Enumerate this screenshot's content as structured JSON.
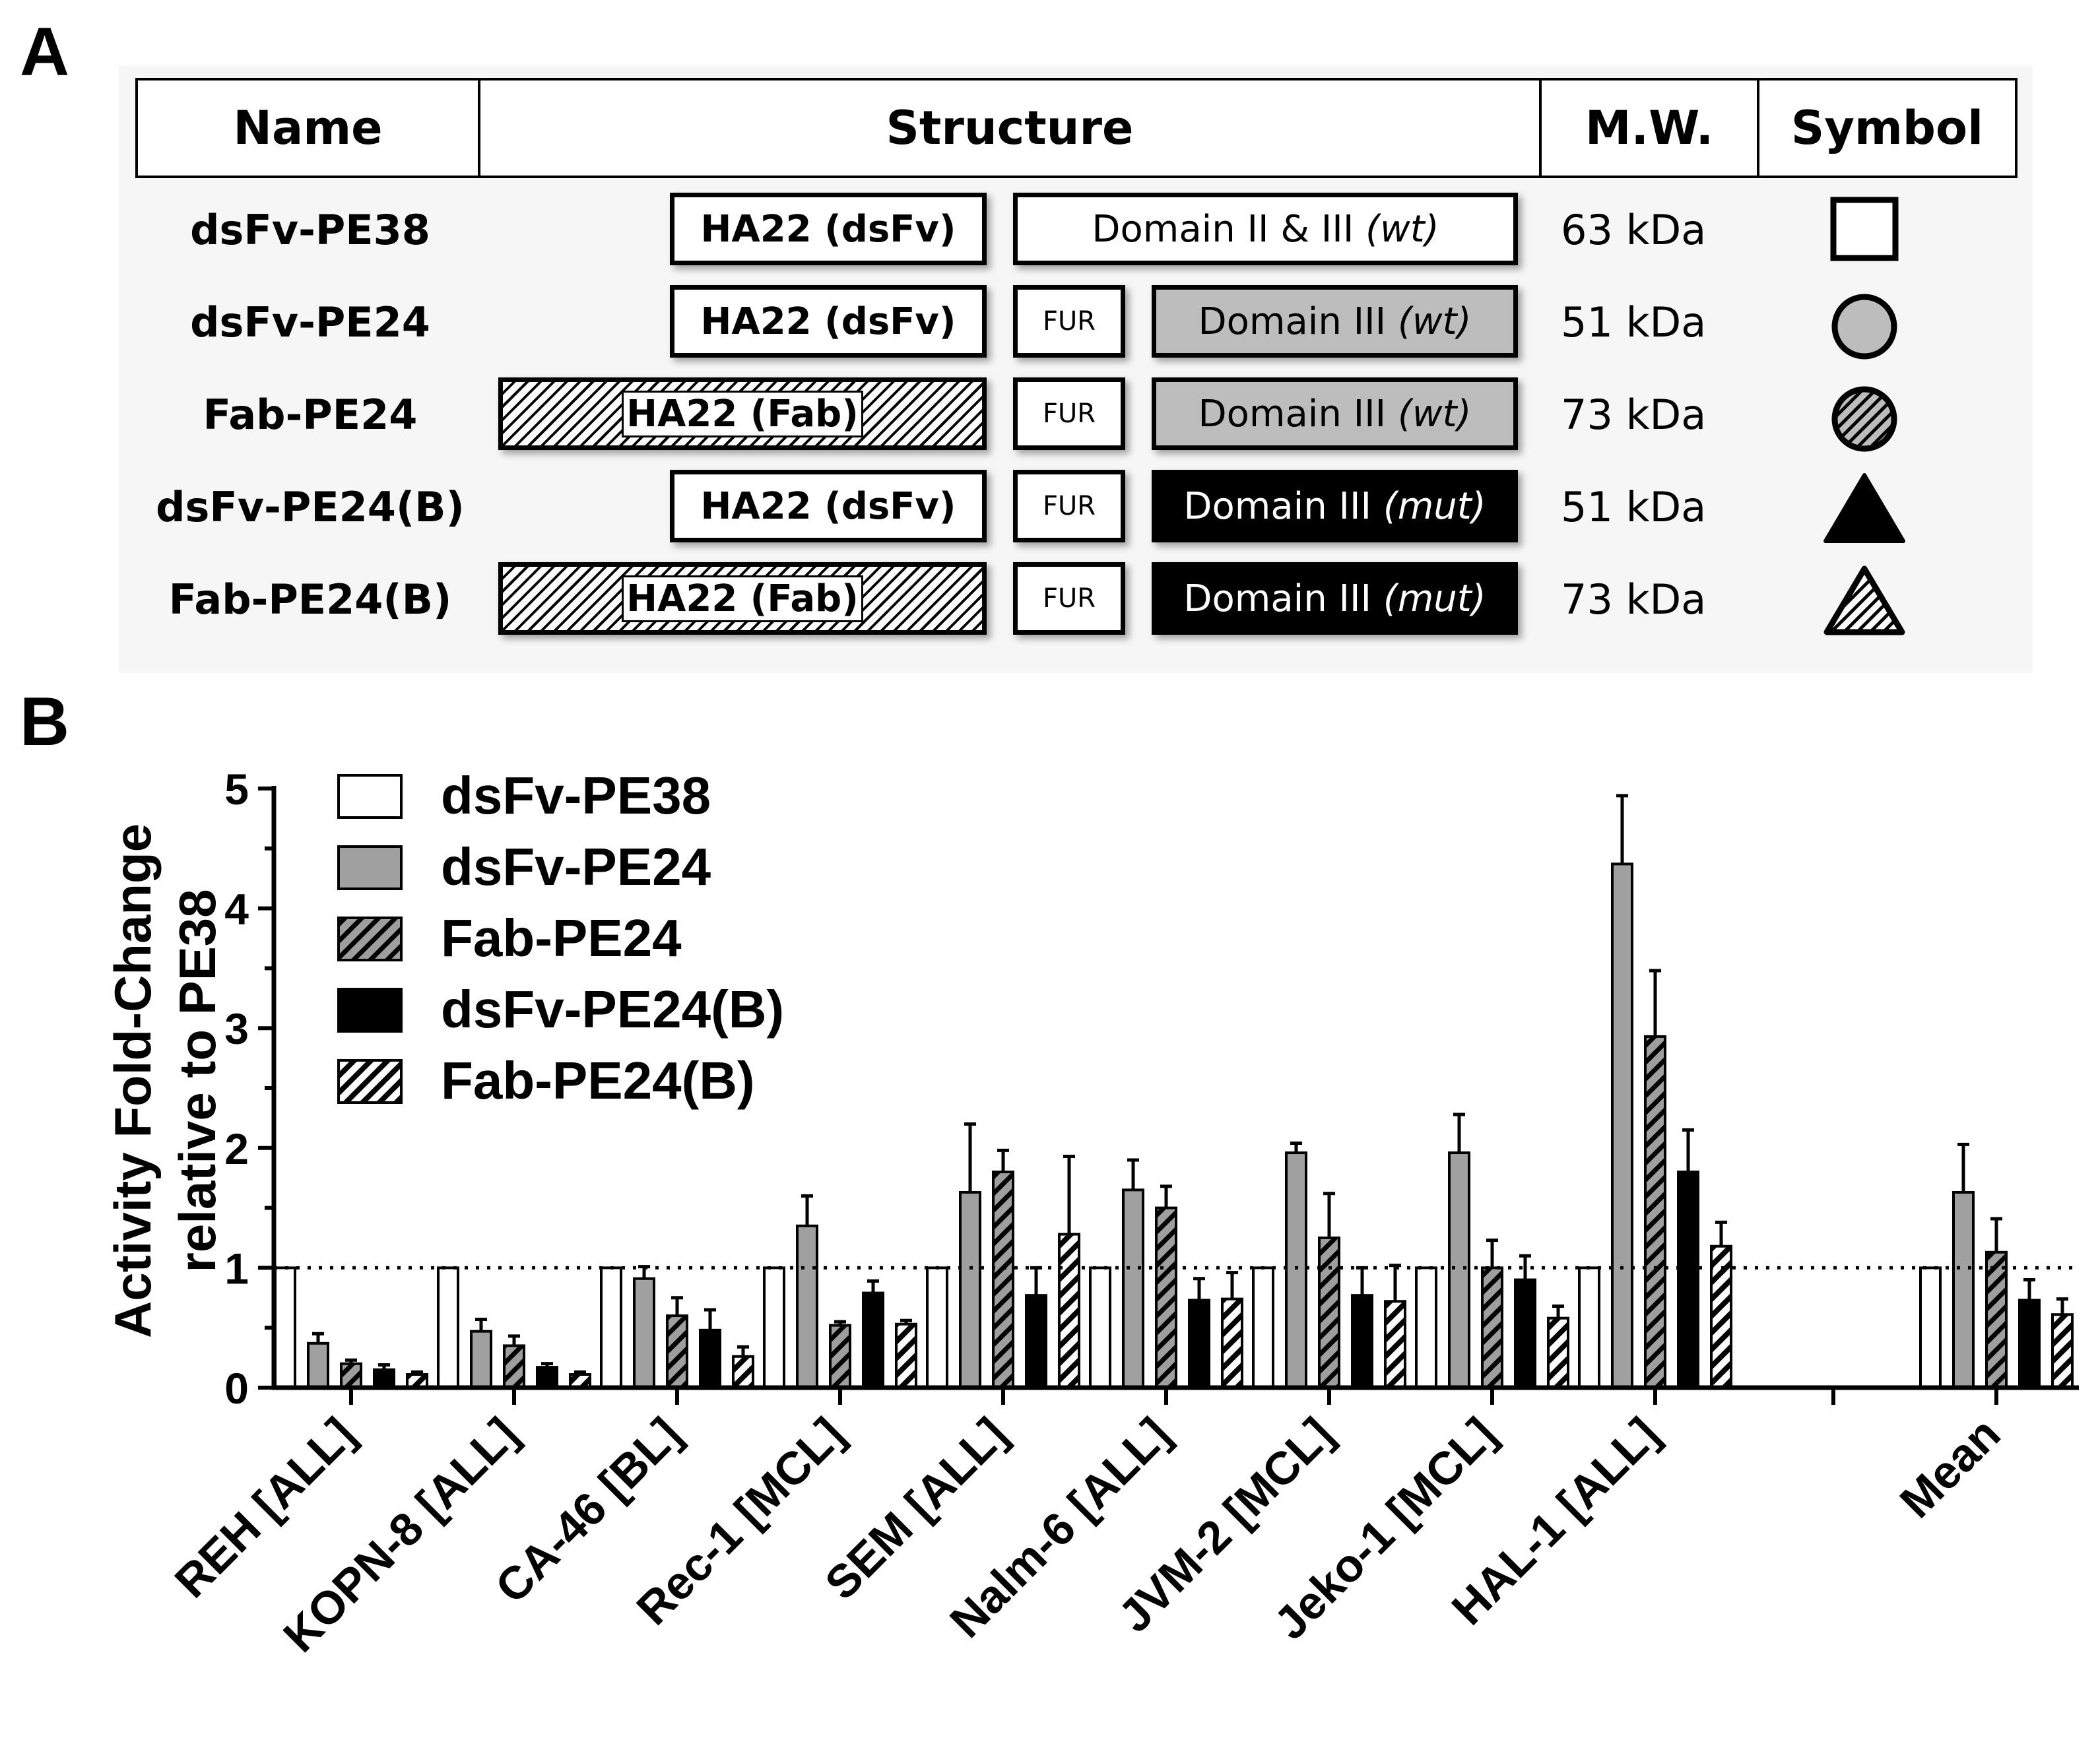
{
  "panel_a": {
    "letter": "A",
    "headers": [
      "Name",
      "Structure",
      "M.W.",
      "Symbol"
    ],
    "rows": [
      {
        "name": "dsFv-PE38",
        "targeting": "HA22 (dsFv)",
        "furin": "",
        "domain_text": "Domain II & III ",
        "domain_italic": "(wt)",
        "mw": "63 kDa",
        "symbol": "square-open"
      },
      {
        "name": "dsFv-PE24",
        "targeting": "HA22 (dsFv)",
        "furin": "FUR",
        "domain_text": "Domain III ",
        "domain_italic": "(wt)",
        "mw": "51 kDa",
        "symbol": "circle-gray"
      },
      {
        "name": "Fab-PE24",
        "targeting": "HA22 (Fab)",
        "furin": "FUR",
        "domain_text": "Domain III ",
        "domain_italic": "(wt)",
        "mw": "73 kDa",
        "symbol": "circle-hatched"
      },
      {
        "name": "dsFv-PE24(B)",
        "targeting": "HA22 (dsFv)",
        "furin": "FUR",
        "domain_text": "Domain III ",
        "domain_italic": "(mut)",
        "mw": "51 kDa",
        "symbol": "triangle-black"
      },
      {
        "name": "Fab-PE24(B)",
        "targeting": "HA22 (Fab)",
        "furin": "FUR",
        "domain_text": "Domain III ",
        "domain_italic": "(mut)",
        "mw": "73 kDa",
        "symbol": "triangle-hatched"
      }
    ]
  },
  "panel_b": {
    "letter": "B"
  },
  "chart_data": {
    "type": "bar",
    "title": "",
    "xlabel": "",
    "ylabel": "Activity Fold-Change relative to PE38",
    "ylabel_lines": [
      "Activity Fold-Change",
      "relative to PE38"
    ],
    "ylim": [
      0,
      5
    ],
    "yticks": [
      0,
      1,
      2,
      3,
      4,
      5
    ],
    "reference_line": 1,
    "categories": [
      "REH [ALL]",
      "KOPN-8 [ALL]",
      "CA-46 [BL]",
      "Rec-1 [MCL]",
      "SEM [ALL]",
      "Nalm-6 [ALL]",
      "JVM-2 [MCL]",
      "Jeko-1 [MCL]",
      "HAL-1 [ALL]",
      "Mean"
    ],
    "legend_position": "top-left",
    "series": [
      {
        "name": "dsFv-PE38",
        "fill": "white",
        "values": [
          1,
          1,
          1,
          1,
          1,
          1,
          1,
          1,
          1,
          1
        ],
        "errors": [
          0,
          0,
          0,
          0,
          0,
          0,
          0,
          0,
          0,
          0
        ]
      },
      {
        "name": "dsFv-PE24",
        "fill": "gray",
        "values": [
          0.37,
          0.47,
          0.91,
          1.35,
          1.63,
          1.65,
          1.96,
          1.96,
          4.37,
          1.63
        ],
        "errors": [
          0.08,
          0.1,
          0.1,
          0.25,
          0.57,
          0.25,
          0.08,
          0.32,
          0.57,
          0.4
        ]
      },
      {
        "name": "Fab-PE24",
        "fill": "gray-hatched",
        "values": [
          0.2,
          0.35,
          0.6,
          0.52,
          1.8,
          1.5,
          1.25,
          1.0,
          2.93,
          1.13
        ],
        "errors": [
          0.03,
          0.08,
          0.15,
          0.03,
          0.18,
          0.18,
          0.37,
          0.23,
          0.55,
          0.28
        ]
      },
      {
        "name": "dsFv-PE24(B)",
        "fill": "black",
        "values": [
          0.15,
          0.17,
          0.48,
          0.79,
          0.77,
          0.73,
          0.77,
          0.9,
          1.8,
          0.73
        ],
        "errors": [
          0.04,
          0.03,
          0.17,
          0.1,
          0.23,
          0.18,
          0.23,
          0.2,
          0.35,
          0.17
        ]
      },
      {
        "name": "Fab-PE24(B)",
        "fill": "white-hatched",
        "values": [
          0.11,
          0.11,
          0.26,
          0.53,
          1.28,
          0.74,
          0.72,
          0.58,
          1.18,
          0.61
        ],
        "errors": [
          0.02,
          0.02,
          0.08,
          0.03,
          0.65,
          0.22,
          0.3,
          0.1,
          0.2,
          0.13
        ]
      }
    ]
  }
}
